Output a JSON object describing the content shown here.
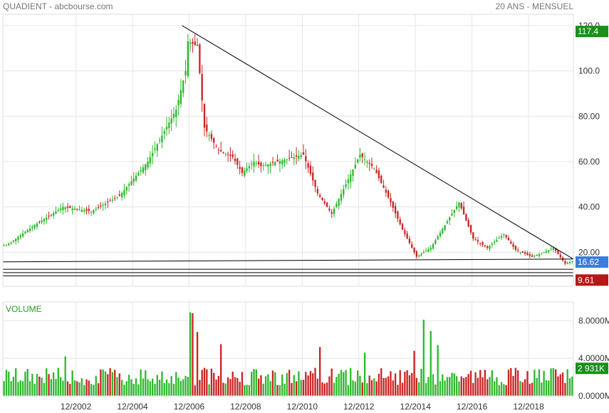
{
  "header": {
    "title": "QUADIENT - abcbourse.com",
    "period": "20 ANS - MENSUEL"
  },
  "colors": {
    "up": "#2db82d",
    "down": "#cc2222",
    "badge_high": "#1a8f1a",
    "badge_last": "#3b7ddd",
    "badge_low": "#b51818",
    "trendline": "#000000",
    "grid": "#e6e6e6"
  },
  "chart_data": [
    {
      "type": "candlestick",
      "title": "",
      "period": "monthly, 20 years",
      "ylim": [
        5,
        125
      ],
      "yticks": [
        20,
        40,
        60,
        80,
        100,
        120
      ],
      "ytick_labels": [
        "20.00",
        "40.00",
        "60.00",
        "80.00",
        "100.0",
        "120.0"
      ],
      "xlim": [
        "2000-05",
        "2020-07"
      ],
      "xtick_labels": [
        "12/2002",
        "12/2004",
        "12/2006",
        "12/2008",
        "12/2010",
        "12/2012",
        "12/2014",
        "12/2016",
        "12/2018"
      ],
      "price_badges": {
        "high": "117.4",
        "last": "16.62",
        "low": "9.61"
      },
      "path_dates": [
        "2000-06",
        "2001-06",
        "2002-06",
        "2003-06",
        "2004-06",
        "2005-06",
        "2006-06",
        "2006-10",
        "2006-11",
        "2007-03",
        "2007-06",
        "2007-12",
        "2008-06",
        "2008-10",
        "2009-03",
        "2009-06",
        "2010-01",
        "2010-12",
        "2011-06",
        "2011-12",
        "2012-06",
        "2012-12",
        "2013-06",
        "2014-01",
        "2014-06",
        "2014-12",
        "2015-06",
        "2016-06",
        "2016-12",
        "2017-06",
        "2018-01",
        "2018-06",
        "2019-01",
        "2019-06",
        "2019-10",
        "2020-03",
        "2020-06"
      ],
      "path_values": [
        23,
        32,
        40,
        38,
        45,
        60,
        83,
        100,
        113,
        111,
        75,
        65,
        62,
        55,
        60,
        58,
        60,
        63,
        46,
        37,
        50,
        63,
        57,
        42,
        30,
        18,
        22,
        42,
        26,
        22,
        28,
        21,
        18,
        20,
        22,
        15,
        16
      ],
      "support_lines": [
        17,
        12.5,
        11,
        9.6
      ],
      "trendline": {
        "start": {
          "date": "2006-09",
          "value": 120
        },
        "end": {
          "date": "2020-07",
          "value": 17
        }
      }
    },
    {
      "type": "bar",
      "title": "VOLUME",
      "ylim": [
        0,
        10000000
      ],
      "yticks": [
        0,
        4000000,
        8000000
      ],
      "ytick_labels": [
        "0.0000M",
        "4.0000M",
        "8.0000M"
      ],
      "last_badge": "2 931K",
      "volume_peaks": [
        {
          "date": "2002-07",
          "value": 4200000
        },
        {
          "date": "2006-12",
          "value": 8900000
        },
        {
          "date": "2007-01",
          "value": 8800000
        },
        {
          "date": "2007-03",
          "value": 6800000
        },
        {
          "date": "2008-01",
          "value": 5500000
        },
        {
          "date": "2011-07",
          "value": 5200000
        },
        {
          "date": "2013-02",
          "value": 4600000
        },
        {
          "date": "2014-11",
          "value": 4800000
        },
        {
          "date": "2015-03",
          "value": 8100000
        },
        {
          "date": "2015-06",
          "value": 6900000
        },
        {
          "date": "2015-09",
          "value": 5400000
        }
      ],
      "base_volume": 2500000
    }
  ]
}
